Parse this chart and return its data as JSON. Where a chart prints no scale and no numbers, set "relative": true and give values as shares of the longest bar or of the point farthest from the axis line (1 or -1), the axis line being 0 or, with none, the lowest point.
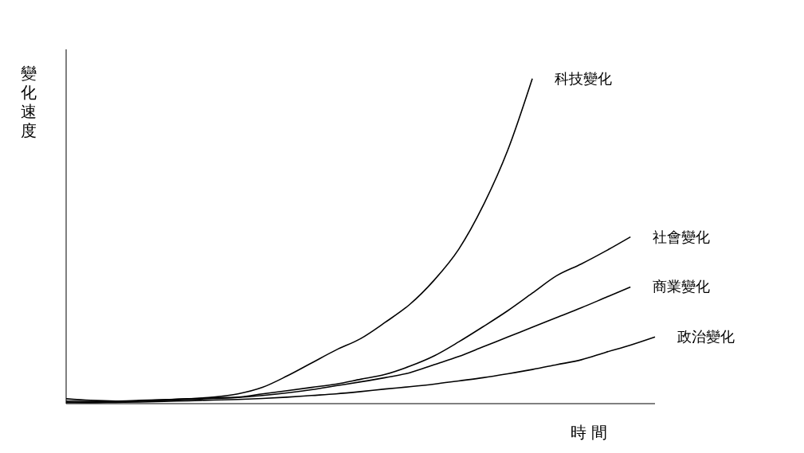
{
  "chart_data": {
    "type": "line",
    "relative": true,
    "xlabel": "時 間",
    "ylabel": "變化速度",
    "categories": [
      null,
      null,
      null,
      null,
      null,
      null,
      null,
      null,
      null,
      null,
      null,
      null,
      null,
      null,
      null,
      null,
      null,
      null,
      null,
      null,
      null,
      null,
      null,
      null,
      null
    ],
    "series": [
      {
        "name": "科技變化",
        "color": "#000000",
        "values": [
          0.015,
          0.01,
          0.008,
          0.01,
          0.012,
          0.015,
          0.02,
          0.03,
          0.05,
          0.085,
          0.125,
          0.165,
          0.2,
          0.25,
          0.305,
          0.38,
          0.475,
          0.61,
          0.78,
          1,
          null,
          null,
          null,
          null,
          null
        ]
      },
      {
        "name": "社會變化",
        "color": "#000000",
        "values": [
          0.008,
          0.006,
          0.005,
          0.008,
          0.012,
          0.015,
          0.018,
          0.02,
          0.03,
          0.04,
          0.05,
          0.06,
          0.075,
          0.09,
          0.115,
          0.147,
          0.19,
          0.237,
          0.286,
          0.34,
          0.394,
          0.43,
          0.47,
          0.513,
          null
        ]
      },
      {
        "name": "商業變化",
        "color": "#000000",
        "values": [
          0.005,
          0.004,
          0.005,
          0.008,
          0.01,
          0.013,
          0.016,
          0.019,
          0.025,
          0.033,
          0.043,
          0.055,
          0.067,
          0.08,
          0.095,
          0.12,
          0.145,
          0.175,
          0.205,
          0.235,
          0.265,
          0.295,
          0.327,
          0.359,
          null
        ]
      },
      {
        "name": "政治變化",
        "color": "#000000",
        "values": [
          0.003,
          0.003,
          0.004,
          0.005,
          0.007,
          0.009,
          0.011,
          0.013,
          0.016,
          0.02,
          0.025,
          0.03,
          0.037,
          0.045,
          0.052,
          0.06,
          0.07,
          0.08,
          0.092,
          0.105,
          0.12,
          0.135,
          0.158,
          0.18,
          0.205
        ]
      }
    ],
    "line_style": "solid",
    "marker": "none"
  }
}
